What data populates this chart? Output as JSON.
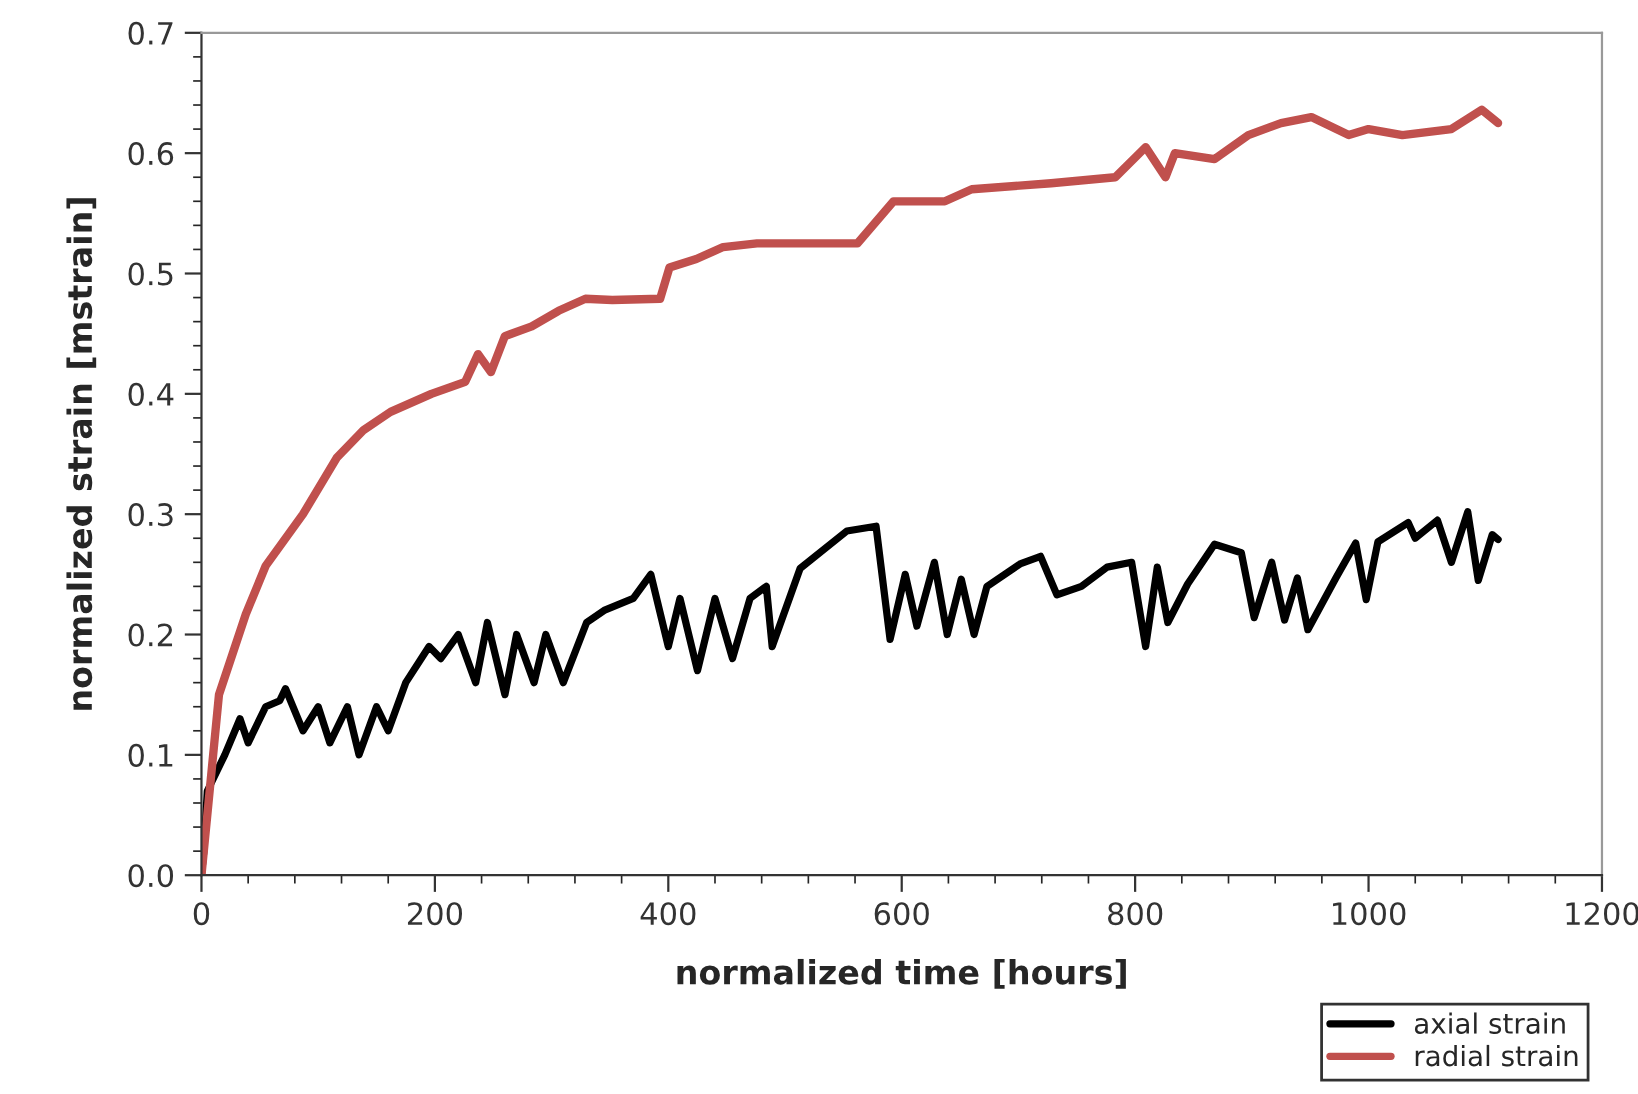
{
  "chart_data": {
    "type": "line",
    "xlabel": "normalized time [hours]",
    "ylabel": "normalized strain [mstrain]",
    "xlim": [
      0,
      1200
    ],
    "xticks": [
      0,
      200,
      400,
      600,
      800,
      1000,
      1200
    ],
    "ylim": [
      0.0,
      0.7
    ],
    "yticks": [
      {
        "value": 0,
        "label": "0.0"
      },
      0.1,
      0.2,
      0.3,
      0.4,
      0.5,
      0.6,
      0.7
    ],
    "grid": false,
    "legend": "bottom right",
    "marker": "none",
    "line_style": "solid",
    "series": [
      {
        "name": "axial strain",
        "color": "#000000",
        "x": [
          0,
          2,
          5,
          20,
          33,
          40,
          55,
          67,
          72,
          87,
          100,
          110,
          125,
          135,
          150,
          160,
          175,
          195,
          205,
          220,
          235,
          245,
          260,
          270,
          285,
          295,
          310,
          330,
          345,
          370,
          385,
          400,
          410,
          425,
          440,
          455,
          470,
          484,
          489,
          513,
          553,
          578,
          590,
          603,
          613,
          628,
          639,
          651,
          662,
          673,
          702,
          719,
          733,
          754,
          776,
          797,
          809,
          819,
          828,
          845,
          868,
          891,
          902,
          917,
          928,
          939,
          948,
          972,
          989,
          998,
          1008,
          1034,
          1040,
          1059,
          1071,
          1085,
          1094,
          1106,
          1111
        ],
        "values": [
          0.0,
          0.02,
          0.07,
          0.1,
          0.13,
          0.11,
          0.14,
          0.145,
          0.155,
          0.12,
          0.14,
          0.11,
          0.14,
          0.1,
          0.14,
          0.12,
          0.16,
          0.19,
          0.18,
          0.2,
          0.16,
          0.21,
          0.15,
          0.2,
          0.16,
          0.2,
          0.16,
          0.21,
          0.22,
          0.23,
          0.25,
          0.19,
          0.23,
          0.17,
          0.23,
          0.18,
          0.23,
          0.24,
          0.19,
          0.255,
          0.286,
          0.29,
          0.196,
          0.25,
          0.207,
          0.26,
          0.2,
          0.246,
          0.2,
          0.24,
          0.259,
          0.265,
          0.233,
          0.24,
          0.256,
          0.26,
          0.19,
          0.256,
          0.21,
          0.242,
          0.275,
          0.268,
          0.214,
          0.26,
          0.212,
          0.247,
          0.204,
          0.247,
          0.276,
          0.229,
          0.277,
          0.293,
          0.28,
          0.295,
          0.26,
          0.302,
          0.245,
          0.283,
          0.279
        ]
      },
      {
        "name": "radial strain",
        "color": "#c0504d",
        "x": [
          0,
          2,
          15,
          38,
          55,
          87,
          116,
          139,
          162,
          197,
          226,
          237,
          248,
          260,
          283,
          306,
          329,
          352,
          393,
          401,
          424,
          447,
          476,
          562,
          593,
          614,
          637,
          660,
          728,
          783,
          809,
          826,
          834,
          868,
          897,
          925,
          951,
          983,
          1000,
          1029,
          1071,
          1097,
          1111
        ],
        "values": [
          0.0,
          0.02,
          0.15,
          0.217,
          0.257,
          0.3,
          0.347,
          0.37,
          0.385,
          0.4,
          0.41,
          0.433,
          0.418,
          0.448,
          0.456,
          0.469,
          0.479,
          0.478,
          0.479,
          0.505,
          0.512,
          0.522,
          0.525,
          0.525,
          0.56,
          0.56,
          0.56,
          0.57,
          0.575,
          0.58,
          0.605,
          0.58,
          0.6,
          0.595,
          0.615,
          0.625,
          0.63,
          0.615,
          0.62,
          0.615,
          0.62,
          0.636,
          0.625
        ]
      }
    ]
  }
}
